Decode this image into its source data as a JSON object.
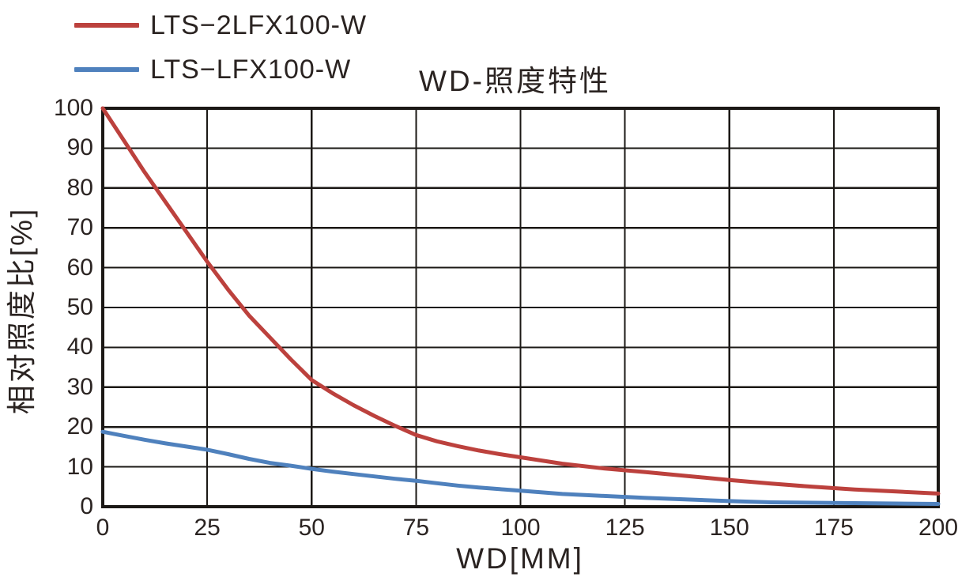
{
  "title": "WD-照度特性",
  "x_axis_title": "WD[MM]",
  "y_axis_title": "相对照度比[%]",
  "legend": [
    {
      "label": "LTS−2LFX100-W",
      "color": "#bc413d"
    },
    {
      "label": "LTS−LFX100-W",
      "color": "#4f81bd"
    }
  ],
  "colors": {
    "grid": "#1b1815",
    "frame": "#1b1815",
    "text": "#2a2321",
    "background": "#ffffff",
    "series_red": "#bc413d",
    "series_blue": "#4f81bd"
  },
  "chart_data": {
    "type": "line",
    "title": "WD-照度特性",
    "xlabel": "WD[MM]",
    "ylabel": "相对照度比[%]",
    "xlim": [
      0,
      200
    ],
    "ylim": [
      0,
      100
    ],
    "x_ticks": [
      0,
      25,
      50,
      75,
      100,
      125,
      150,
      175,
      200
    ],
    "y_ticks": [
      0,
      10,
      20,
      30,
      40,
      50,
      60,
      70,
      80,
      90,
      100
    ],
    "grid": true,
    "legend_position": "top-left",
    "series": [
      {
        "name": "LTS−2LFX100-W",
        "color": "#bc413d",
        "points": [
          [
            0,
            100
          ],
          [
            5,
            92
          ],
          [
            10,
            84
          ],
          [
            15,
            76.5
          ],
          [
            20,
            69
          ],
          [
            25,
            61.5
          ],
          [
            30,
            54.5
          ],
          [
            35,
            48
          ],
          [
            40,
            42.5
          ],
          [
            45,
            37
          ],
          [
            50,
            31.8
          ],
          [
            55,
            28.5
          ],
          [
            60,
            25.5
          ],
          [
            65,
            22.8
          ],
          [
            70,
            20.3
          ],
          [
            75,
            18
          ],
          [
            80,
            16.4
          ],
          [
            85,
            15.2
          ],
          [
            90,
            14.1
          ],
          [
            95,
            13.2
          ],
          [
            100,
            12.4
          ],
          [
            110,
            10.8
          ],
          [
            120,
            9.6
          ],
          [
            130,
            8.7
          ],
          [
            140,
            7.7
          ],
          [
            150,
            6.7
          ],
          [
            160,
            5.8
          ],
          [
            170,
            5
          ],
          [
            180,
            4.3
          ],
          [
            190,
            3.8
          ],
          [
            200,
            3.3
          ]
        ]
      },
      {
        "name": "LTS−LFX100-W",
        "color": "#4f81bd",
        "points": [
          [
            0,
            18.8
          ],
          [
            5,
            17.8
          ],
          [
            10,
            16.8
          ],
          [
            15,
            15.9
          ],
          [
            20,
            15.1
          ],
          [
            25,
            14.3
          ],
          [
            30,
            13.2
          ],
          [
            35,
            12
          ],
          [
            40,
            11
          ],
          [
            45,
            10.3
          ],
          [
            50,
            9.5
          ],
          [
            55,
            8.8
          ],
          [
            60,
            8.2
          ],
          [
            65,
            7.6
          ],
          [
            70,
            7
          ],
          [
            75,
            6.5
          ],
          [
            80,
            5.9
          ],
          [
            85,
            5.3
          ],
          [
            90,
            4.8
          ],
          [
            95,
            4.4
          ],
          [
            100,
            4
          ],
          [
            110,
            3.2
          ],
          [
            120,
            2.7
          ],
          [
            130,
            2.2
          ],
          [
            140,
            1.8
          ],
          [
            150,
            1.4
          ],
          [
            160,
            1.1
          ],
          [
            170,
            1
          ],
          [
            180,
            0.9
          ],
          [
            190,
            0.8
          ],
          [
            200,
            0.7
          ]
        ]
      }
    ]
  }
}
